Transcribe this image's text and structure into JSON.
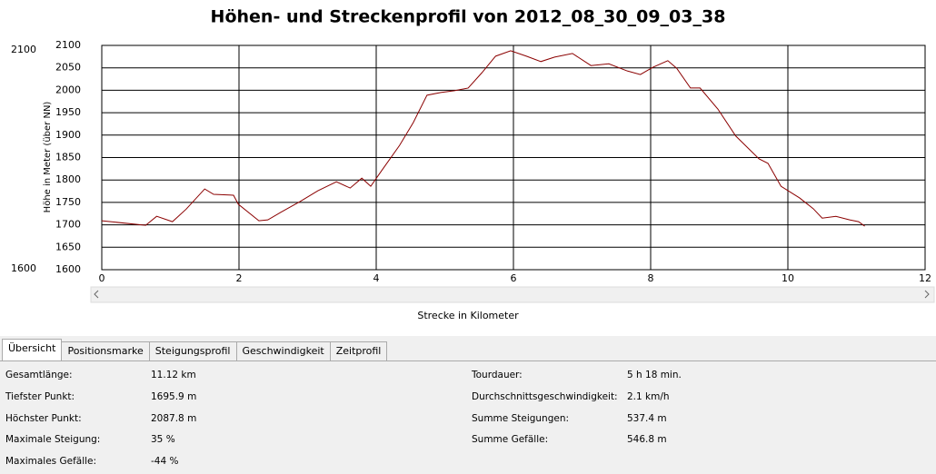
{
  "chart_data": {
    "type": "line",
    "title": "Höhen- und Streckenprofil von 2012_08_30_09_03_38",
    "x_label": "Strecke in Kilometer",
    "y_label": "Höhe in Meter (über NN)",
    "x": [
      0,
      0.64,
      0.8,
      1.03,
      1.23,
      1.5,
      1.63,
      1.92,
      1.99,
      2.29,
      2.42,
      2.62,
      2.89,
      3.15,
      3.42,
      3.62,
      3.79,
      3.92,
      4.08,
      4.34,
      4.54,
      4.74,
      4.94,
      5.14,
      5.34,
      5.54,
      5.74,
      5.96,
      6.19,
      6.4,
      6.6,
      6.86,
      7.13,
      7.39,
      7.66,
      7.85,
      8.03,
      8.25,
      8.38,
      8.58,
      8.72,
      8.98,
      9.24,
      9.58,
      9.71,
      9.9,
      10.17,
      10.37,
      10.5,
      10.7,
      10.9,
      11.03,
      11.12
    ],
    "series": [
      {
        "color": "#8b0000",
        "values": [
          1709,
          1699,
          1719,
          1707,
          1735,
          1780,
          1768,
          1766,
          1746,
          1709,
          1711,
          1729,
          1752,
          1776,
          1796,
          1782,
          1804,
          1786,
          1821,
          1877,
          1928,
          1989,
          1995,
          1999,
          2005,
          2039,
          2076,
          2088,
          2076,
          2064,
          2074,
          2082,
          2055,
          2059,
          2043,
          2035,
          2051,
          2066,
          2049,
          2005,
          2005,
          1958,
          1898,
          1847,
          1837,
          1786,
          1760,
          1736,
          1715,
          1719,
          1711,
          1707,
          1697
        ]
      }
    ],
    "xlim": [
      0,
      12
    ],
    "ylim": [
      1600,
      2100
    ],
    "xticks": [
      0,
      2,
      4,
      6,
      8,
      10,
      12
    ],
    "yticks": [
      1600,
      1650,
      1700,
      1750,
      1800,
      1850,
      1900,
      1950,
      2000,
      2050,
      2100
    ],
    "grid": true
  },
  "range_inputs": {
    "max": "2100",
    "min": "1600"
  },
  "tabs": [
    "Übersicht",
    "Positionsmarke",
    "Steigungsprofil",
    "Geschwindigkeit",
    "Zeitprofil"
  ],
  "stats": {
    "left": [
      [
        "Gesamtlänge:",
        "11.12 km"
      ],
      [
        "Tiefster Punkt:",
        "1695.9 m"
      ],
      [
        "Höchster Punkt:",
        "2087.8 m"
      ],
      [
        "Maximale Steigung:",
        "35 %"
      ],
      [
        "Maximales Gefälle:",
        "-44 %"
      ]
    ],
    "right": [
      [
        "Tourdauer:",
        "5 h 18 min."
      ],
      [
        "Durchschnittsgeschwindigkeit:",
        "2.1 km/h"
      ],
      [
        "Summe Steigungen:",
        "537.4 m"
      ],
      [
        "Summe Gefälle:",
        "546.8 m"
      ]
    ]
  }
}
